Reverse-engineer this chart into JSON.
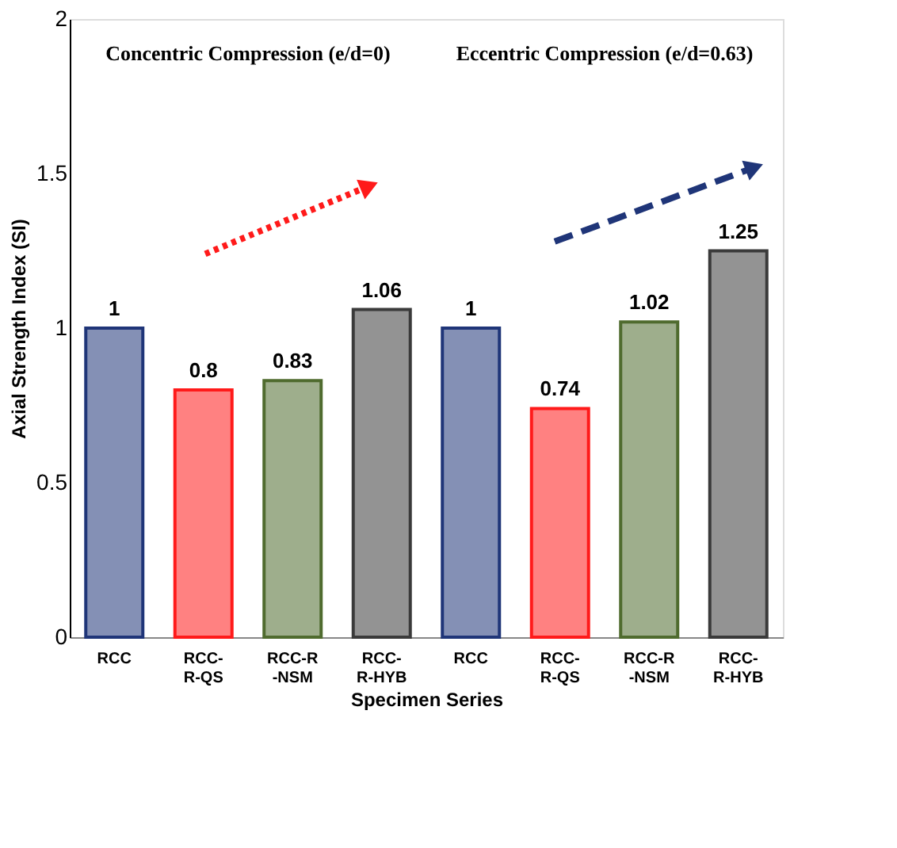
{
  "chart_data": {
    "type": "bar",
    "xlabel": "Specimen Series",
    "ylabel": "Axial Strength Index (SI)",
    "categories": [
      "RCC",
      "RCC-\nR-QS",
      "RCC-R\n-NSM",
      "RCC-\nR-HYB",
      "RCC",
      "RCC-\nR-QS",
      "RCC-R\n-NSM",
      "RCC-\nR-HYB"
    ],
    "values": [
      1,
      0.8,
      0.83,
      1.06,
      1,
      0.74,
      1.02,
      1.25
    ],
    "colors": [
      "#1f3578",
      "#ff1a1a",
      "#4f6b2e",
      "#3a3a3a",
      "#1f3578",
      "#ff1a1a",
      "#4f6b2e",
      "#3a3a3a"
    ],
    "ylim": [
      0,
      2
    ],
    "yticks": [
      0,
      0.5,
      1,
      1.5,
      2
    ],
    "grid": false,
    "data_labels": true,
    "annotations": [
      "Concentric Compression (e/d=0)",
      "Eccentric Compression (e/d=0.63)"
    ]
  }
}
